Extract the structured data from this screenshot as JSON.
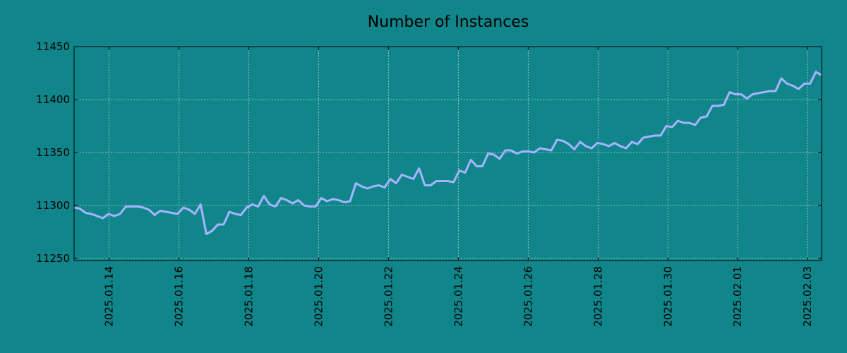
{
  "chart_data": {
    "type": "line",
    "title": "Number of Instances",
    "xlabel": "",
    "ylabel": "",
    "x_start": "2025-01-13",
    "x_ticks": [
      "2025.01.14",
      "2025.01.16",
      "2025.01.18",
      "2025.01.20",
      "2025.01.22",
      "2025.01.24",
      "2025.01.26",
      "2025.01.28",
      "2025.01.30",
      "2025.02.01",
      "2025.02.03"
    ],
    "x_end": "2025-02-03 09:36",
    "xlim": [
      "2025-01-13",
      "2025-02-03 09:36"
    ],
    "ylim": [
      11248,
      11450
    ],
    "yticks": [
      11250,
      11300,
      11350,
      11400,
      11450
    ],
    "grid": true,
    "background_color": "#10858a",
    "line_color": "#a6b4ff",
    "series": [
      {
        "values": [
          11298,
          11297,
          11293,
          11292,
          11290,
          11288,
          11292,
          11290,
          11292,
          11299,
          11299,
          11299,
          11298,
          11296,
          11291,
          11295,
          11294,
          11293,
          11292,
          11298,
          11296,
          11292,
          11301,
          11273,
          11276,
          11282,
          11282,
          11294,
          11292,
          11291,
          11298,
          11301,
          11299,
          11309,
          11301,
          11299,
          11307,
          11305,
          11302,
          11305,
          11300,
          11299,
          11299,
          11307,
          11304,
          11306,
          11305,
          11303,
          11304,
          11321,
          11318,
          11316,
          11318,
          11319,
          11317,
          11325,
          11321,
          11329,
          11327,
          11325,
          11335,
          11319,
          11319,
          11323,
          11323,
          11323,
          11322,
          11333,
          11331,
          11343,
          11337,
          11337,
          11349,
          11348,
          11344,
          11352,
          11352,
          11349,
          11351,
          11351,
          11350,
          11354,
          11353,
          11352,
          11362,
          11361,
          11358,
          11353,
          11360,
          11356,
          11354,
          11359,
          11358,
          11356,
          11359,
          11356,
          11354,
          11360,
          11358,
          11364,
          11365,
          11366,
          11366,
          11375,
          11374,
          11380,
          11378,
          11378,
          11376,
          11383,
          11384,
          11394,
          11394,
          11395,
          11407,
          11405,
          11405,
          11401,
          11405,
          11406,
          11407,
          11408,
          11408,
          11420,
          11415,
          11413,
          11410,
          11415,
          11415,
          11426,
          11423
        ]
      }
    ]
  }
}
